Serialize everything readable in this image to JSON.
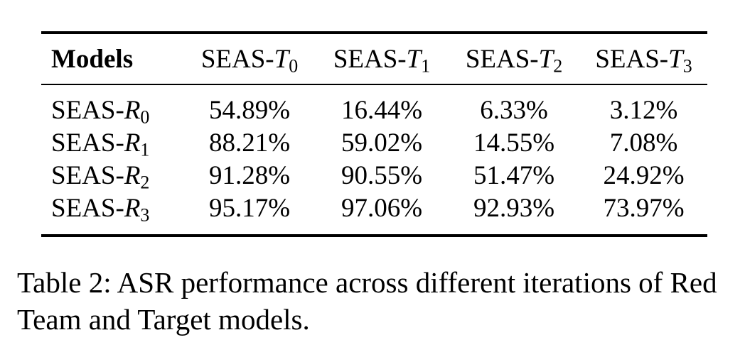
{
  "table": {
    "header_label": "Models",
    "columns": [
      {
        "prefix": "SEAS-",
        "var": "T",
        "sub": "0"
      },
      {
        "prefix": "SEAS-",
        "var": "T",
        "sub": "1"
      },
      {
        "prefix": "SEAS-",
        "var": "T",
        "sub": "2"
      },
      {
        "prefix": "SEAS-",
        "var": "T",
        "sub": "3"
      }
    ],
    "rows": [
      {
        "prefix": "SEAS-",
        "var": "R",
        "sub": "0",
        "values": [
          "54.89%",
          "16.44%",
          "6.33%",
          "3.12%"
        ]
      },
      {
        "prefix": "SEAS-",
        "var": "R",
        "sub": "1",
        "values": [
          "88.21%",
          "59.02%",
          "14.55%",
          "7.08%"
        ]
      },
      {
        "prefix": "SEAS-",
        "var": "R",
        "sub": "2",
        "values": [
          "91.28%",
          "90.55%",
          "51.47%",
          "24.92%"
        ]
      },
      {
        "prefix": "SEAS-",
        "var": "R",
        "sub": "3",
        "values": [
          "95.17%",
          "97.06%",
          "92.93%",
          "73.97%"
        ]
      }
    ]
  },
  "caption": "Table 2: ASR performance across different iterations of Red Team and Target models."
}
